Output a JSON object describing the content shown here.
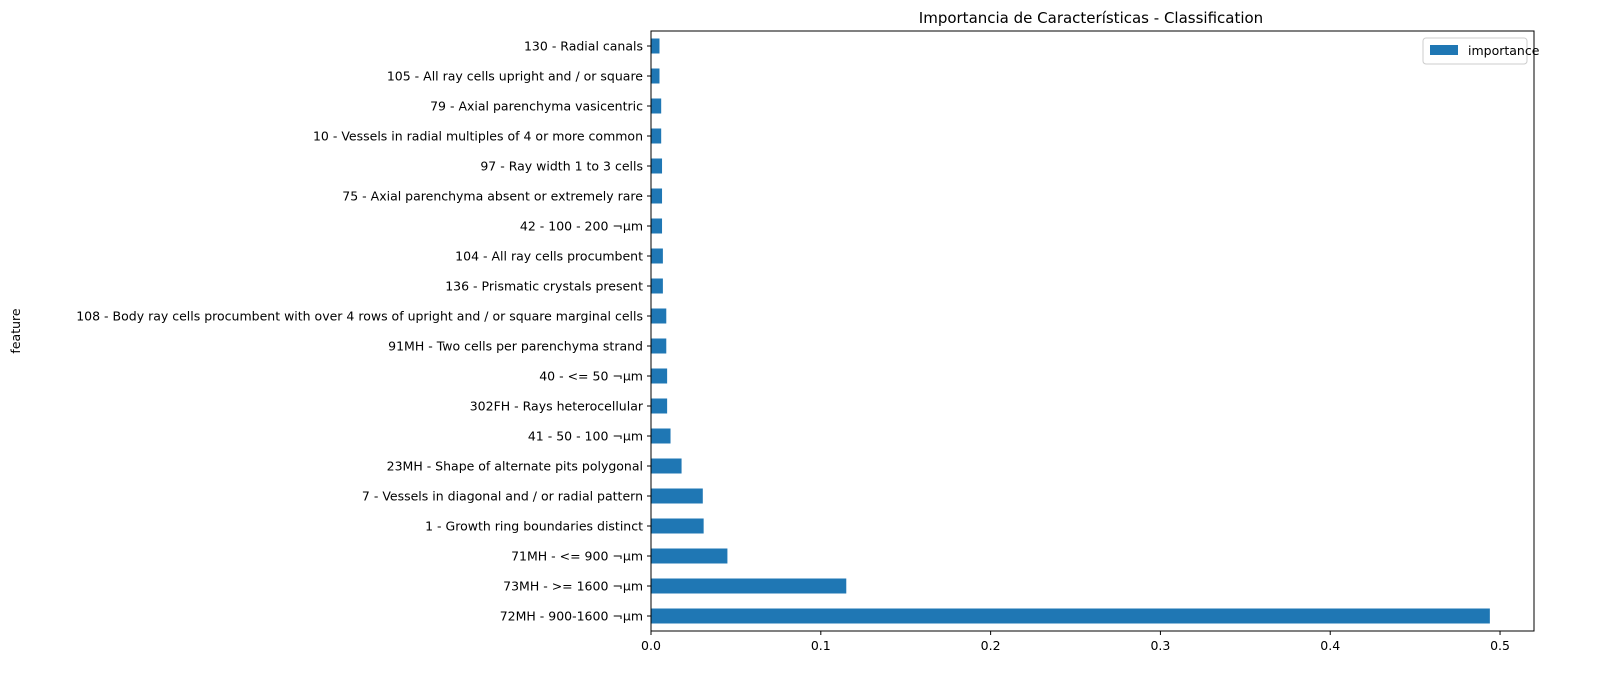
{
  "chart_data": {
    "type": "bar",
    "orientation": "horizontal",
    "title": "Importancia de Características - Classification",
    "xlabel": "",
    "ylabel": "feature",
    "xlim": [
      0,
      0.52
    ],
    "x_ticks": [
      0.0,
      0.1,
      0.2,
      0.3,
      0.4,
      0.5
    ],
    "x_tick_labels": [
      "0.0",
      "0.1",
      "0.2",
      "0.3",
      "0.4",
      "0.5"
    ],
    "grid": false,
    "legend_position": "top-right",
    "bar_color": "#1f77b4",
    "categories": [
      "130 - Radial canals",
      "105 - All ray cells upright and / or square",
      "79 - Axial parenchyma vasicentric",
      "10 - Vessels in radial multiples of 4 or more common",
      "97 - Ray width 1 to 3 cells",
      "75 - Axial parenchyma absent or extremely rare",
      "42 - 100 - 200 ¬µm",
      "104 - All ray cells procumbent",
      "136 - Prismatic crystals present",
      "108 - Body ray cells procumbent with over 4 rows of upright and / or square marginal cells",
      "91MH - Two cells per parenchyma strand",
      "40 - <= 50 ¬µm",
      "302FH - Rays heterocellular",
      "41 - 50 - 100 ¬µm",
      "23MH - Shape of alternate pits polygonal",
      "7 - Vessels in diagonal and / or radial pattern",
      "1 - Growth ring boundaries distinct",
      "71MH - <= 900 ¬µm",
      "73MH - >= 1600 ¬µm",
      "72MH - 900-1600 ¬µm"
    ],
    "series": [
      {
        "name": "importance",
        "values": [
          0.005,
          0.005,
          0.006,
          0.006,
          0.0065,
          0.0065,
          0.0065,
          0.007,
          0.007,
          0.009,
          0.009,
          0.0095,
          0.0095,
          0.0115,
          0.018,
          0.0305,
          0.031,
          0.045,
          0.115,
          0.494
        ]
      }
    ]
  }
}
